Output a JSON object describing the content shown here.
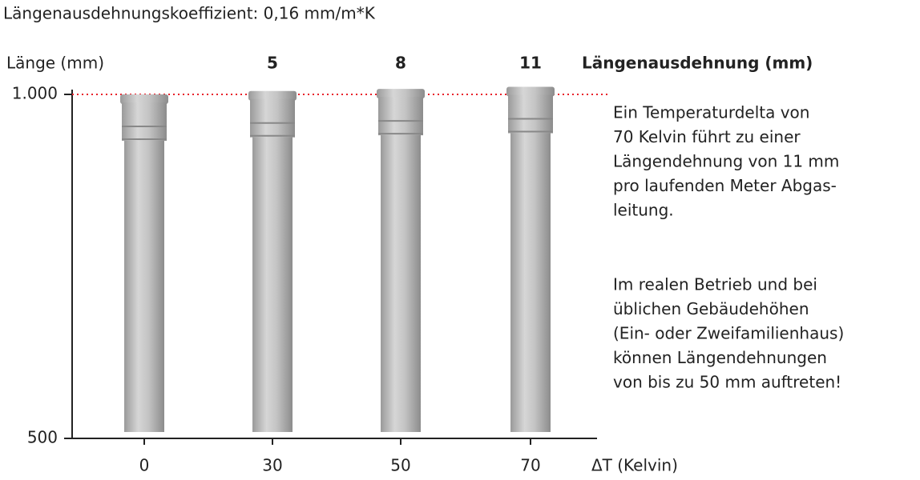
{
  "chart_data": {
    "type": "pipes",
    "title": "Längenausdehnungskoeffizient: 0,16 mm/m*K",
    "y_label": "Länge (mm)",
    "x_label": "ΔT (Kelvin)",
    "categories": [
      "0",
      "30",
      "50",
      "70"
    ],
    "base_length": 1000,
    "series": [
      {
        "name": "Längenausdehnung (mm)",
        "color": "#e8202a",
        "values": [
          0,
          5,
          8,
          11
        ],
        "value_labels": [
          null,
          "5",
          "8",
          "11"
        ]
      }
    ],
    "ylim": [
      500,
      1000
    ],
    "yticks": [
      500,
      {
        "value": 1000,
        "label": "1.000"
      }
    ],
    "annotation": [
      [
        "Ein Temperaturdelta von",
        "70 Kelvin führt zu einer",
        "Längendehnung von 11 mm",
        "pro laufenden Meter Abgas-",
        "leitung."
      ],
      [
        "Im realen Betrieb und bei",
        "üblichen Gebäudehöhen",
        "(Ein- oder Zweifamilienhaus)",
        "können Längendehnungen",
        "von bis zu 50 mm auftreten!"
      ]
    ]
  }
}
